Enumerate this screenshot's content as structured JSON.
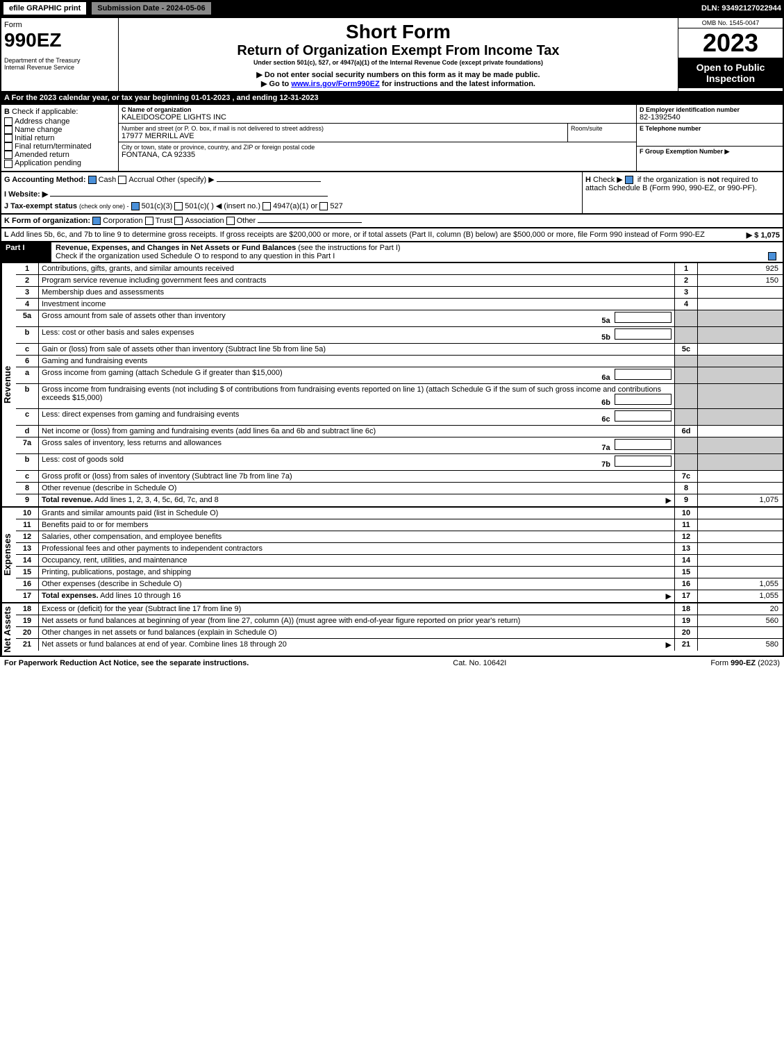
{
  "header": {
    "efile": "efile GRAPHIC print",
    "submission": "Submission Date - 2024-05-06",
    "dln": "DLN: 93492127022944"
  },
  "titleBlock": {
    "form": "Form",
    "formNo": "990EZ",
    "dept": "Department of the Treasury",
    "irs": "Internal Revenue Service",
    "shortForm": "Short Form",
    "title": "Return of Organization Exempt From Income Tax",
    "under": "Under section 501(c), 527, or 4947(a)(1) of the Internal Revenue Code (except private foundations)",
    "note1": "▶ Do not enter social security numbers on this form as it may be made public.",
    "note2": "▶ Go to ",
    "link": "www.irs.gov/Form990EZ",
    "note2b": " for instructions and the latest information.",
    "omb": "OMB No. 1545-0047",
    "year": "2023",
    "open": "Open to Public Inspection"
  },
  "A": "A  For the 2023 calendar year, or tax year beginning 01-01-2023 , and ending 12-31-2023",
  "B": {
    "label": "B",
    "text": "Check if applicable:",
    "opts": [
      "Address change",
      "Name change",
      "Initial return",
      "Final return/terminated",
      "Amended return",
      "Application pending"
    ]
  },
  "C": {
    "nameLabel": "C Name of organization",
    "name": "KALEIDOSCOPE LIGHTS INC",
    "streetLabel": "Number and street (or P. O. box, if mail is not delivered to street address)",
    "room": "Room/suite",
    "street": "17977 MERRILL AVE",
    "cityLabel": "City or town, state or province, country, and ZIP or foreign postal code",
    "city": "FONTANA, CA  92335"
  },
  "D": {
    "label": "D Employer identification number",
    "ein": "82-1392540"
  },
  "E": {
    "label": "E Telephone number"
  },
  "F": {
    "label": "F Group Exemption Number  ▶"
  },
  "G": {
    "label": "G Accounting Method:",
    "cash": "Cash",
    "accrual": "Accrual",
    "other": "Other (specify) ▶"
  },
  "H": {
    "label": "H",
    "text": "Check ▶ ",
    "text2": " if the organization is ",
    "not": "not",
    "text3": " required to attach Schedule B (Form 990, 990-EZ, or 990-PF)."
  },
  "I": {
    "label": "I Website: ▶"
  },
  "J": {
    "label": "J Tax-exempt status",
    "small": "(check only one) -",
    "o1": "501(c)(3)",
    "o2": "501(c)(  ) ◀ (insert no.)",
    "o3": "4947(a)(1) or",
    "o4": "527"
  },
  "K": {
    "label": "K Form of organization:",
    "o1": "Corporation",
    "o2": "Trust",
    "o3": "Association",
    "o4": "Other"
  },
  "L": {
    "label": "L",
    "text": "Add lines 5b, 6c, and 7b to line 9 to determine gross receipts. If gross receipts are $200,000 or more, or if total assets (Part II, column (B) below) are $500,000 or more, file Form 990 instead of Form 990-EZ",
    "val": "▶ $ 1,075"
  },
  "part1": {
    "label": "Part I",
    "title": "Revenue, Expenses, and Changes in Net Assets or Fund Balances",
    "instr": "(see the instructions for Part I)",
    "check": "Check if the organization used Schedule O to respond to any question in this Part I"
  },
  "sections": {
    "rev": "Revenue",
    "exp": "Expenses",
    "na": "Net Assets"
  },
  "lines": [
    {
      "n": "1",
      "d": "Contributions, gifts, grants, and similar amounts received",
      "rn": "1",
      "v": "925"
    },
    {
      "n": "2",
      "d": "Program service revenue including government fees and contracts",
      "rn": "2",
      "v": "150"
    },
    {
      "n": "3",
      "d": "Membership dues and assessments",
      "rn": "3",
      "v": ""
    },
    {
      "n": "4",
      "d": "Investment income",
      "rn": "4",
      "v": ""
    },
    {
      "n": "5a",
      "d": "Gross amount from sale of assets other than inventory",
      "sub": "5a",
      "rn": "",
      "v": "",
      "gray": true
    },
    {
      "n": "b",
      "d": "Less: cost or other basis and sales expenses",
      "sub": "5b",
      "rn": "",
      "v": "",
      "gray": true
    },
    {
      "n": "c",
      "d": "Gain or (loss) from sale of assets other than inventory (Subtract line 5b from line 5a)",
      "rn": "5c",
      "v": ""
    },
    {
      "n": "6",
      "d": "Gaming and fundraising events",
      "rn": "",
      "v": "",
      "gray": true
    },
    {
      "n": "a",
      "d": "Gross income from gaming (attach Schedule G if greater than $15,000)",
      "sub": "6a",
      "rn": "",
      "v": "",
      "gray": true
    },
    {
      "n": "b",
      "d": "Gross income from fundraising events (not including $                           of contributions from fundraising events reported on line 1) (attach Schedule G if the sum of such gross income and contributions exceeds $15,000)",
      "sub": "6b",
      "rn": "",
      "v": "",
      "gray": true
    },
    {
      "n": "c",
      "d": "Less: direct expenses from gaming and fundraising events",
      "sub": "6c",
      "rn": "",
      "v": "",
      "gray": true
    },
    {
      "n": "d",
      "d": "Net income or (loss) from gaming and fundraising events (add lines 6a and 6b and subtract line 6c)",
      "rn": "6d",
      "v": ""
    },
    {
      "n": "7a",
      "d": "Gross sales of inventory, less returns and allowances",
      "sub": "7a",
      "rn": "",
      "v": "",
      "gray": true
    },
    {
      "n": "b",
      "d": "Less: cost of goods sold",
      "sub": "7b",
      "rn": "",
      "v": "",
      "gray": true
    },
    {
      "n": "c",
      "d": "Gross profit or (loss) from sales of inventory (Subtract line 7b from line 7a)",
      "rn": "7c",
      "v": ""
    },
    {
      "n": "8",
      "d": "Other revenue (describe in Schedule O)",
      "rn": "8",
      "v": ""
    },
    {
      "n": "9",
      "d": "Total revenue. Add lines 1, 2, 3, 4, 5c, 6d, 7c, and 8",
      "rn": "9",
      "v": "1,075",
      "bold": true,
      "arrow": true
    }
  ],
  "expLines": [
    {
      "n": "10",
      "d": "Grants and similar amounts paid (list in Schedule O)",
      "rn": "10",
      "v": ""
    },
    {
      "n": "11",
      "d": "Benefits paid to or for members",
      "rn": "11",
      "v": ""
    },
    {
      "n": "12",
      "d": "Salaries, other compensation, and employee benefits",
      "rn": "12",
      "v": ""
    },
    {
      "n": "13",
      "d": "Professional fees and other payments to independent contractors",
      "rn": "13",
      "v": ""
    },
    {
      "n": "14",
      "d": "Occupancy, rent, utilities, and maintenance",
      "rn": "14",
      "v": ""
    },
    {
      "n": "15",
      "d": "Printing, publications, postage, and shipping",
      "rn": "15",
      "v": ""
    },
    {
      "n": "16",
      "d": "Other expenses (describe in Schedule O)",
      "rn": "16",
      "v": "1,055"
    },
    {
      "n": "17",
      "d": "Total expenses. Add lines 10 through 16",
      "rn": "17",
      "v": "1,055",
      "bold": true,
      "arrow": true
    }
  ],
  "naLines": [
    {
      "n": "18",
      "d": "Excess or (deficit) for the year (Subtract line 17 from line 9)",
      "rn": "18",
      "v": "20"
    },
    {
      "n": "19",
      "d": "Net assets or fund balances at beginning of year (from line 27, column (A)) (must agree with end-of-year figure reported on prior year's return)",
      "rn": "19",
      "v": "560"
    },
    {
      "n": "20",
      "d": "Other changes in net assets or fund balances (explain in Schedule O)",
      "rn": "20",
      "v": ""
    },
    {
      "n": "21",
      "d": "Net assets or fund balances at end of year. Combine lines 18 through 20",
      "rn": "21",
      "v": "580",
      "arrow": true
    }
  ],
  "footer": {
    "left": "For Paperwork Reduction Act Notice, see the separate instructions.",
    "mid": "Cat. No. 10642I",
    "right": "Form 990-EZ (2023)"
  }
}
